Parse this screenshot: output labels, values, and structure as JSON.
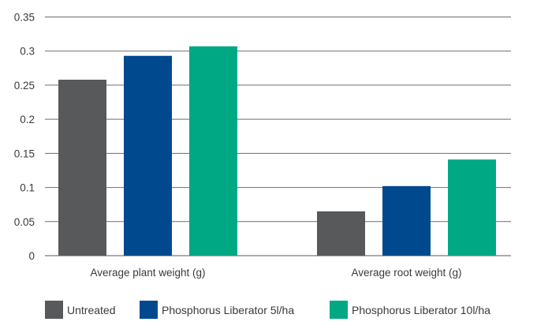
{
  "chart_data": {
    "type": "bar",
    "categories": [
      "Average plant weight (g)",
      "Average root weight (g)"
    ],
    "series": [
      {
        "name": "Untreated",
        "color": "#58595b",
        "values": [
          0.258,
          0.065
        ]
      },
      {
        "name": "Phosphorus Liberator 5l/ha",
        "color": "#00498f",
        "values": [
          0.293,
          0.102
        ]
      },
      {
        "name": "Phosphorus Liberator 10l/ha",
        "color": "#00a984",
        "values": [
          0.307,
          0.141
        ]
      }
    ],
    "yticks": [
      "0",
      "0.05",
      "0.1",
      "0.15",
      "0.2",
      "0.25",
      "0.3",
      "0.35"
    ],
    "ylim": [
      0,
      0.35
    ],
    "grid": true,
    "legend": "bottom"
  }
}
